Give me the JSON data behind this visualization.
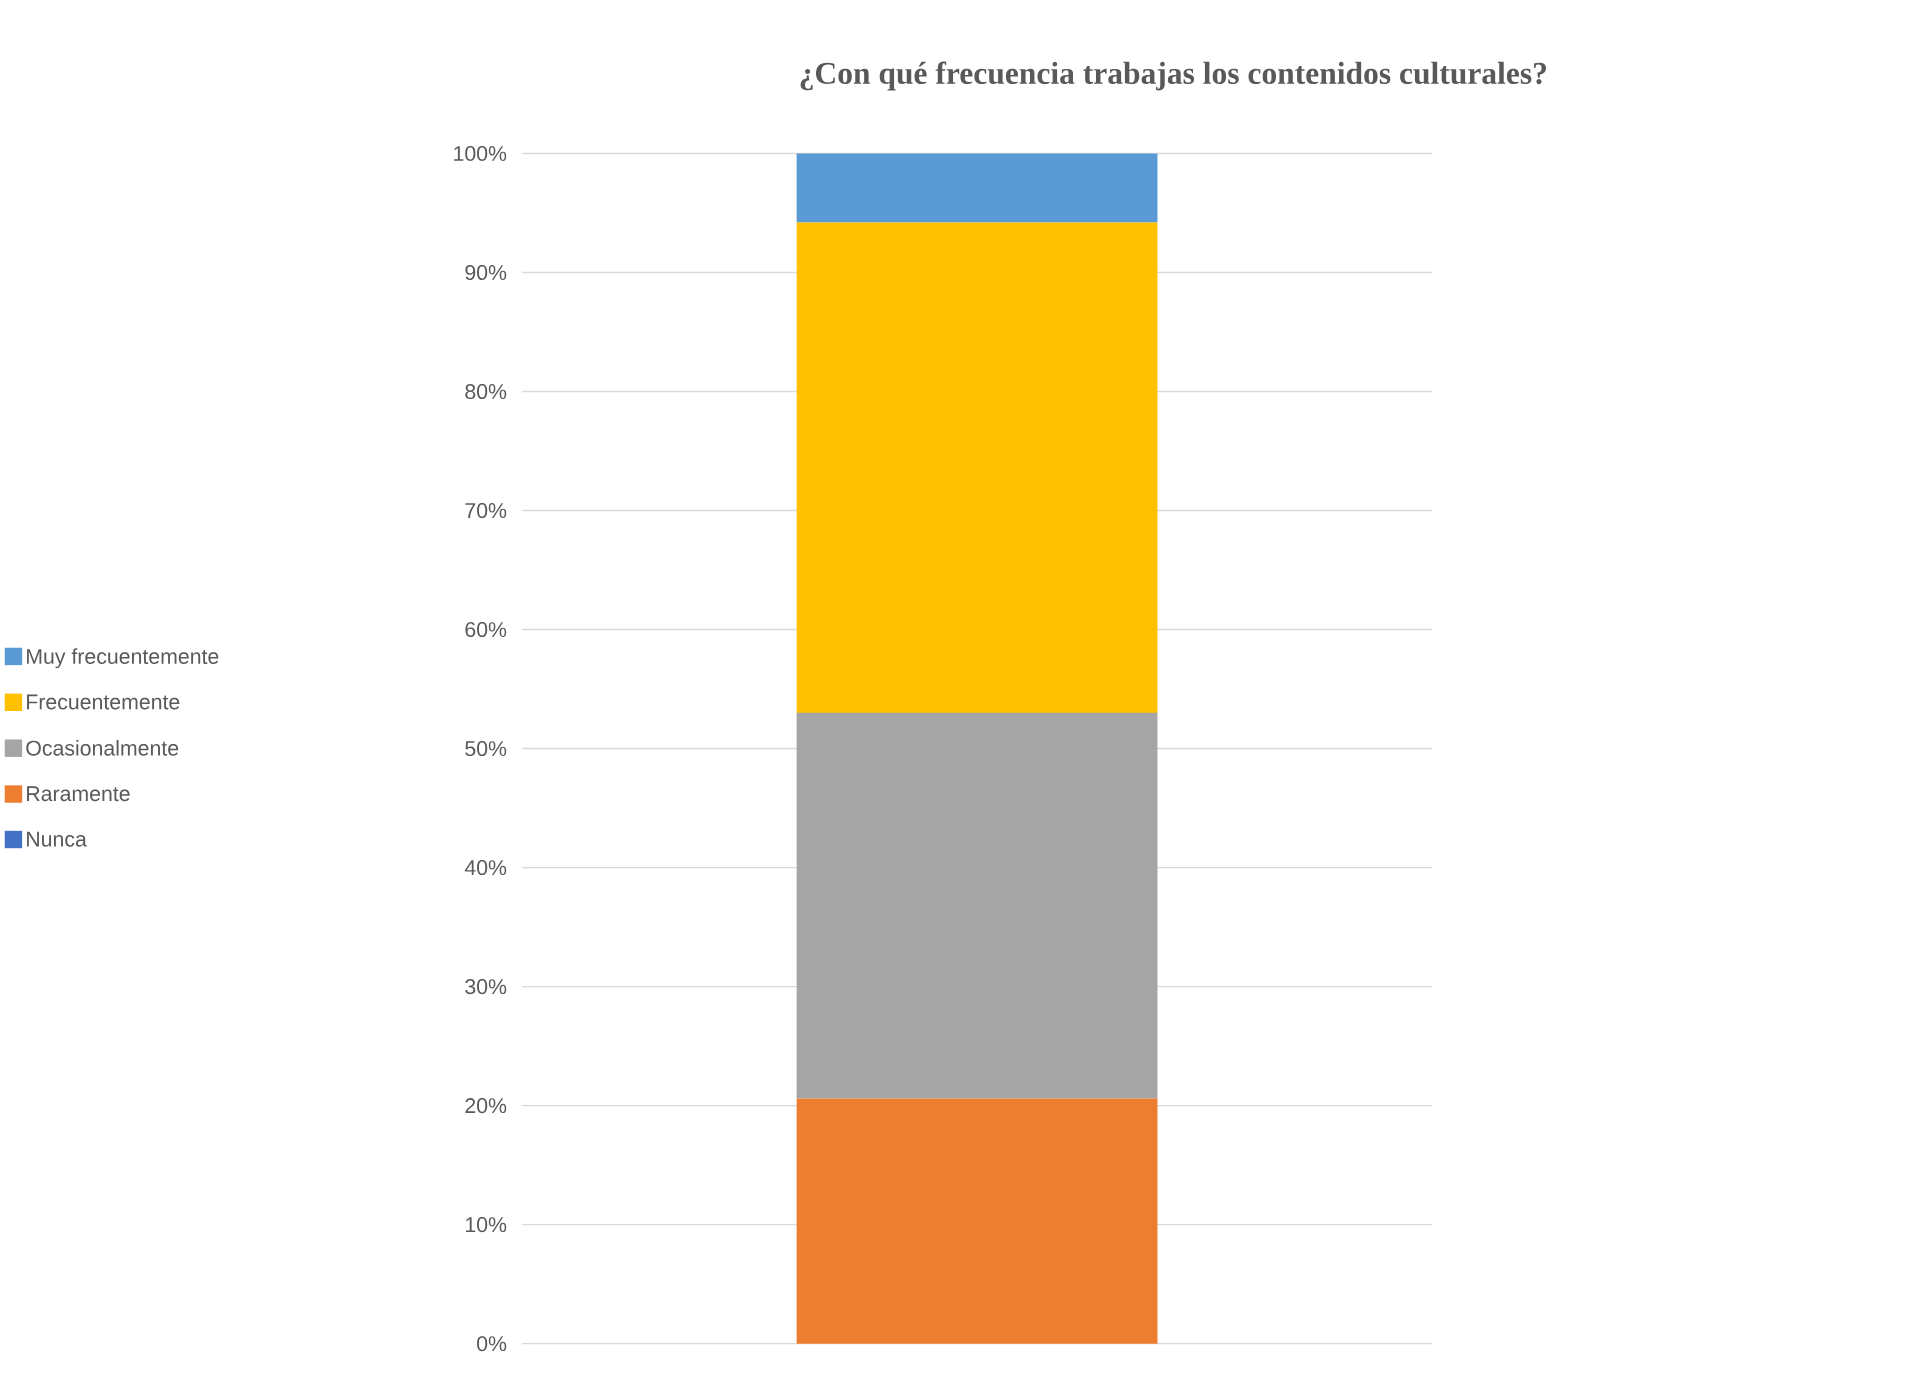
{
  "chart_data": {
    "type": "bar",
    "stacked": true,
    "title": "¿Con qué frecuencia trabajas los contenidos culturales?",
    "categories": [
      null
    ],
    "series": [
      {
        "name": "Nunca",
        "color": "#4472c4",
        "values": [
          0
        ]
      },
      {
        "name": "Raramente",
        "color": "#ed7d31",
        "values": [
          20.6
        ]
      },
      {
        "name": "Ocasionalmente",
        "color": "#a5a5a5",
        "values": [
          32.4
        ]
      },
      {
        "name": "Frecuentemente",
        "color": "#ffc000",
        "values": [
          41.2
        ]
      },
      {
        "name": "Muy frecuentemente",
        "color": "#5b9bd5",
        "values": [
          5.8
        ]
      }
    ],
    "ylim": [
      0,
      100
    ],
    "yticks": [
      {
        "value": 0,
        "label": "0%"
      },
      {
        "value": 10,
        "label": "10%"
      },
      {
        "value": 20,
        "label": "20%"
      },
      {
        "value": 30,
        "label": "30%"
      },
      {
        "value": 40,
        "label": "40%"
      },
      {
        "value": 50,
        "label": "50%"
      },
      {
        "value": 60,
        "label": "60%"
      },
      {
        "value": 70,
        "label": "70%"
      },
      {
        "value": 80,
        "label": "80%"
      },
      {
        "value": 90,
        "label": "90%"
      },
      {
        "value": 100,
        "label": "100%"
      }
    ],
    "grid": "y",
    "legend": "left"
  }
}
